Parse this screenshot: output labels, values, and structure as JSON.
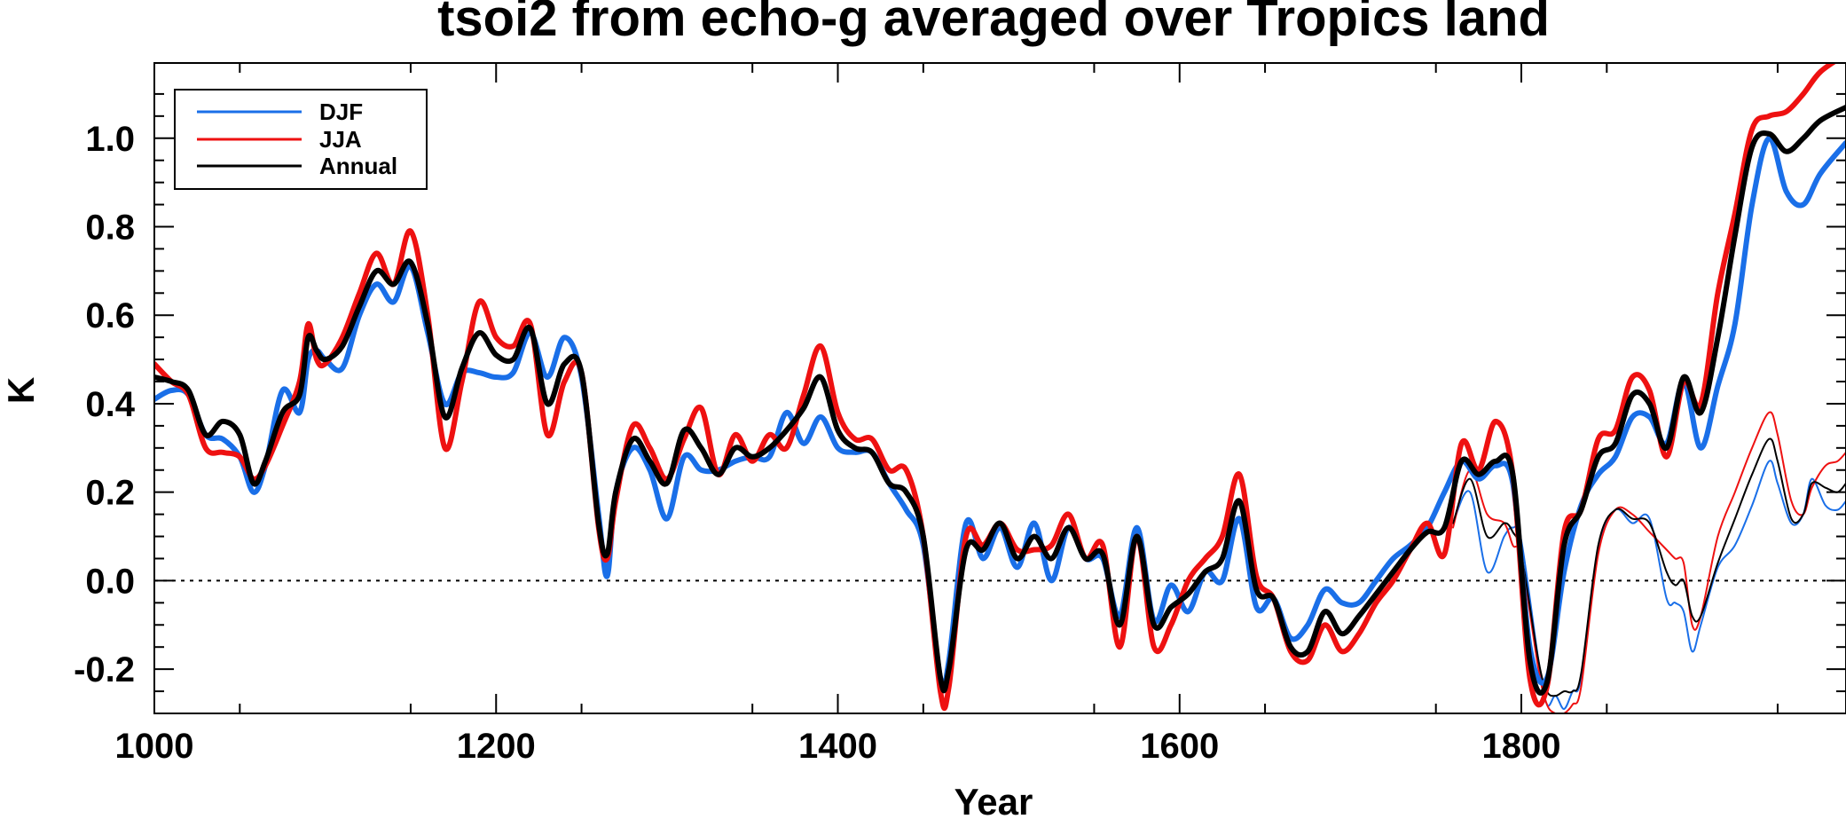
{
  "chart_data": {
    "type": "line",
    "title": "tsoi2 from echo-g averaged over Tropics land",
    "xlabel": "Year",
    "ylabel": "K",
    "xlim": [
      1000,
      1990
    ],
    "ylim": [
      -0.3,
      1.17
    ],
    "x_ticks": [
      {
        "value": 1000,
        "label": "1000"
      },
      {
        "value": 1200,
        "label": "1200"
      },
      {
        "value": 1400,
        "label": "1400"
      },
      {
        "value": 1600,
        "label": "1600"
      },
      {
        "value": 1800,
        "label": "1800"
      }
    ],
    "y_ticks": [
      {
        "value": -0.2,
        "label": "-0.2"
      },
      {
        "value": 0.0,
        "label": "0.0"
      },
      {
        "value": 0.2,
        "label": "0.2"
      },
      {
        "value": 0.4,
        "label": "0.4"
      },
      {
        "value": 0.6,
        "label": "0.6"
      },
      {
        "value": 0.8,
        "label": "0.8"
      },
      {
        "value": 1.0,
        "label": "1.0"
      }
    ],
    "zero_line": true,
    "grid": false,
    "legend_position": "top-left",
    "series": [
      {
        "name": "DJF",
        "color": "#1a6fe8",
        "style": "thick",
        "x": [
          1000,
          1010,
          1020,
          1030,
          1040,
          1050,
          1058,
          1065,
          1075,
          1085,
          1090,
          1095,
          1100,
          1110,
          1120,
          1130,
          1140,
          1150,
          1160,
          1170,
          1180,
          1190,
          1200,
          1210,
          1220,
          1230,
          1240,
          1250,
          1260,
          1265,
          1270,
          1280,
          1290,
          1300,
          1310,
          1320,
          1330,
          1340,
          1350,
          1360,
          1370,
          1380,
          1390,
          1400,
          1410,
          1420,
          1430,
          1440,
          1450,
          1460,
          1465,
          1475,
          1485,
          1495,
          1505,
          1515,
          1525,
          1535,
          1545,
          1555,
          1565,
          1575,
          1585,
          1595,
          1605,
          1615,
          1625,
          1635,
          1645,
          1655,
          1665,
          1675,
          1685,
          1695,
          1705,
          1715,
          1725,
          1735,
          1745,
          1755,
          1765,
          1775,
          1785,
          1795,
          1805,
          1815,
          1825,
          1835,
          1845,
          1855,
          1865,
          1875,
          1885,
          1895,
          1905,
          1915,
          1925,
          1935,
          1945,
          1955,
          1965,
          1975,
          1990
        ],
        "y": [
          0.41,
          0.43,
          0.42,
          0.33,
          0.32,
          0.28,
          0.2,
          0.26,
          0.43,
          0.38,
          0.5,
          0.52,
          0.5,
          0.48,
          0.6,
          0.67,
          0.63,
          0.71,
          0.56,
          0.4,
          0.47,
          0.47,
          0.46,
          0.47,
          0.56,
          0.46,
          0.55,
          0.46,
          0.15,
          0.01,
          0.2,
          0.3,
          0.25,
          0.14,
          0.28,
          0.25,
          0.25,
          0.27,
          0.28,
          0.28,
          0.38,
          0.31,
          0.37,
          0.3,
          0.29,
          0.29,
          0.22,
          0.16,
          0.08,
          -0.22,
          -0.18,
          0.13,
          0.05,
          0.12,
          0.03,
          0.13,
          0.0,
          0.12,
          0.05,
          0.05,
          -0.08,
          0.12,
          -0.09,
          -0.01,
          -0.07,
          0.02,
          0.0,
          0.14,
          -0.06,
          -0.04,
          -0.13,
          -0.1,
          -0.02,
          -0.05,
          -0.05,
          0.0,
          0.05,
          0.08,
          0.12,
          0.2,
          0.27,
          0.23,
          0.26,
          0.22,
          -0.15,
          -0.22,
          0.02,
          0.17,
          0.24,
          0.28,
          0.37,
          0.37,
          0.31,
          0.45,
          0.3,
          0.44,
          0.58,
          0.85,
          1.0,
          0.88,
          0.85,
          0.92,
          0.99
        ]
      },
      {
        "name": "JJA",
        "color": "#ee1111",
        "style": "thick",
        "x": [
          1000,
          1010,
          1020,
          1030,
          1040,
          1050,
          1058,
          1065,
          1075,
          1085,
          1090,
          1095,
          1100,
          1110,
          1120,
          1130,
          1140,
          1150,
          1160,
          1170,
          1180,
          1190,
          1200,
          1210,
          1220,
          1230,
          1240,
          1250,
          1260,
          1265,
          1270,
          1280,
          1290,
          1300,
          1310,
          1320,
          1330,
          1340,
          1350,
          1360,
          1370,
          1380,
          1390,
          1400,
          1410,
          1420,
          1430,
          1440,
          1450,
          1460,
          1465,
          1475,
          1485,
          1495,
          1505,
          1515,
          1525,
          1535,
          1545,
          1555,
          1565,
          1575,
          1585,
          1595,
          1605,
          1615,
          1625,
          1635,
          1645,
          1655,
          1665,
          1675,
          1685,
          1695,
          1705,
          1715,
          1725,
          1735,
          1745,
          1755,
          1765,
          1775,
          1785,
          1795,
          1805,
          1815,
          1825,
          1835,
          1845,
          1855,
          1865,
          1875,
          1885,
          1895,
          1905,
          1915,
          1925,
          1935,
          1945,
          1955,
          1965,
          1975,
          1990
        ],
        "y": [
          0.49,
          0.45,
          0.42,
          0.3,
          0.29,
          0.28,
          0.23,
          0.26,
          0.35,
          0.45,
          0.58,
          0.5,
          0.49,
          0.55,
          0.65,
          0.74,
          0.67,
          0.79,
          0.6,
          0.3,
          0.45,
          0.63,
          0.55,
          0.53,
          0.58,
          0.33,
          0.45,
          0.47,
          0.12,
          0.05,
          0.18,
          0.35,
          0.3,
          0.23,
          0.32,
          0.39,
          0.24,
          0.33,
          0.27,
          0.33,
          0.3,
          0.42,
          0.53,
          0.38,
          0.32,
          0.32,
          0.25,
          0.25,
          0.1,
          -0.25,
          -0.24,
          0.1,
          0.08,
          0.13,
          0.07,
          0.07,
          0.08,
          0.15,
          0.05,
          0.08,
          -0.15,
          0.1,
          -0.15,
          -0.1,
          0.0,
          0.05,
          0.1,
          0.24,
          0.01,
          -0.04,
          -0.16,
          -0.18,
          -0.1,
          -0.16,
          -0.12,
          -0.05,
          0.0,
          0.07,
          0.13,
          0.06,
          0.31,
          0.25,
          0.36,
          0.24,
          -0.22,
          -0.24,
          0.11,
          0.16,
          0.32,
          0.34,
          0.46,
          0.43,
          0.28,
          0.45,
          0.4,
          0.65,
          0.83,
          1.02,
          1.05,
          1.06,
          1.1,
          1.15,
          1.19
        ]
      },
      {
        "name": "Annual",
        "color": "#000000",
        "style": "thick",
        "x": [
          1000,
          1010,
          1020,
          1030,
          1040,
          1050,
          1058,
          1065,
          1075,
          1085,
          1090,
          1095,
          1100,
          1110,
          1120,
          1130,
          1140,
          1150,
          1160,
          1170,
          1180,
          1190,
          1200,
          1210,
          1220,
          1230,
          1240,
          1250,
          1260,
          1265,
          1270,
          1280,
          1290,
          1300,
          1310,
          1320,
          1330,
          1340,
          1350,
          1360,
          1370,
          1380,
          1390,
          1400,
          1410,
          1420,
          1430,
          1440,
          1450,
          1460,
          1465,
          1475,
          1485,
          1495,
          1505,
          1515,
          1525,
          1535,
          1545,
          1555,
          1565,
          1575,
          1585,
          1595,
          1605,
          1615,
          1625,
          1635,
          1645,
          1655,
          1665,
          1675,
          1685,
          1695,
          1705,
          1715,
          1725,
          1735,
          1745,
          1755,
          1765,
          1775,
          1785,
          1795,
          1805,
          1815,
          1825,
          1835,
          1845,
          1855,
          1865,
          1875,
          1885,
          1895,
          1905,
          1915,
          1925,
          1935,
          1945,
          1955,
          1965,
          1975,
          1990
        ],
        "y": [
          0.46,
          0.45,
          0.43,
          0.33,
          0.36,
          0.33,
          0.22,
          0.27,
          0.38,
          0.42,
          0.55,
          0.52,
          0.5,
          0.53,
          0.62,
          0.7,
          0.67,
          0.72,
          0.58,
          0.37,
          0.48,
          0.56,
          0.51,
          0.5,
          0.57,
          0.4,
          0.49,
          0.47,
          0.13,
          0.06,
          0.2,
          0.32,
          0.27,
          0.22,
          0.34,
          0.3,
          0.24,
          0.3,
          0.28,
          0.3,
          0.34,
          0.39,
          0.46,
          0.34,
          0.3,
          0.29,
          0.22,
          0.2,
          0.1,
          -0.22,
          -0.2,
          0.07,
          0.07,
          0.13,
          0.05,
          0.1,
          0.05,
          0.12,
          0.05,
          0.06,
          -0.1,
          0.1,
          -0.1,
          -0.06,
          -0.03,
          0.02,
          0.05,
          0.18,
          -0.02,
          -0.04,
          -0.15,
          -0.16,
          -0.07,
          -0.12,
          -0.08,
          -0.03,
          0.02,
          0.07,
          0.11,
          0.12,
          0.27,
          0.24,
          0.27,
          0.24,
          -0.18,
          -0.23,
          0.08,
          0.16,
          0.28,
          0.31,
          0.42,
          0.4,
          0.3,
          0.46,
          0.38,
          0.55,
          0.78,
          0.98,
          1.01,
          0.97,
          1.0,
          1.04,
          1.07
        ]
      },
      {
        "name": "DJF (thin)",
        "color": "#1a6fe8",
        "style": "thin",
        "x": [
          1760,
          1770,
          1780,
          1790,
          1795,
          1800,
          1810,
          1815,
          1820,
          1825,
          1830,
          1835,
          1845,
          1855,
          1865,
          1875,
          1885,
          1890,
          1895,
          1900,
          1905,
          1915,
          1925,
          1935,
          1945,
          1950,
          1958,
          1965,
          1970,
          1978,
          1985,
          1990
        ],
        "y": [
          0.13,
          0.2,
          0.02,
          0.1,
          0.12,
          0.09,
          -0.18,
          -0.28,
          -0.26,
          -0.29,
          -0.25,
          -0.22,
          0.07,
          0.16,
          0.13,
          0.14,
          -0.04,
          -0.05,
          -0.07,
          -0.16,
          -0.1,
          0.03,
          0.08,
          0.17,
          0.27,
          0.22,
          0.13,
          0.15,
          0.23,
          0.17,
          0.16,
          0.18
        ]
      },
      {
        "name": "JJA (thin)",
        "color": "#ee1111",
        "style": "thin",
        "x": [
          1760,
          1770,
          1780,
          1790,
          1795,
          1800,
          1810,
          1815,
          1820,
          1825,
          1830,
          1835,
          1845,
          1855,
          1865,
          1875,
          1885,
          1890,
          1895,
          1900,
          1905,
          1915,
          1925,
          1935,
          1945,
          1950,
          1958,
          1965,
          1970,
          1978,
          1985,
          1990
        ],
        "y": [
          0.12,
          0.25,
          0.15,
          0.13,
          0.08,
          0.05,
          -0.2,
          -0.28,
          -0.3,
          -0.3,
          -0.28,
          -0.24,
          0.06,
          0.16,
          0.15,
          0.11,
          0.07,
          0.05,
          0.04,
          -0.1,
          -0.08,
          0.1,
          0.2,
          0.3,
          0.38,
          0.33,
          0.18,
          0.15,
          0.21,
          0.26,
          0.27,
          0.29
        ]
      },
      {
        "name": "Annual (thin)",
        "color": "#000000",
        "style": "thin",
        "x": [
          1760,
          1770,
          1780,
          1790,
          1795,
          1800,
          1810,
          1815,
          1820,
          1825,
          1830,
          1835,
          1845,
          1855,
          1865,
          1875,
          1885,
          1890,
          1895,
          1900,
          1905,
          1915,
          1925,
          1935,
          1945,
          1950,
          1958,
          1965,
          1970,
          1978,
          1985,
          1990
        ],
        "y": [
          0.13,
          0.23,
          0.1,
          0.13,
          0.11,
          0.06,
          -0.18,
          -0.25,
          -0.26,
          -0.25,
          -0.25,
          -0.21,
          0.08,
          0.16,
          0.14,
          0.13,
          0.02,
          -0.01,
          0.0,
          -0.08,
          -0.08,
          0.04,
          0.14,
          0.24,
          0.32,
          0.27,
          0.14,
          0.15,
          0.22,
          0.21,
          0.2,
          0.22
        ]
      }
    ],
    "legend": [
      {
        "label": "DJF",
        "color": "#1a6fe8"
      },
      {
        "label": "JJA",
        "color": "#ee1111"
      },
      {
        "label": "Annual",
        "color": "#000000"
      }
    ]
  }
}
